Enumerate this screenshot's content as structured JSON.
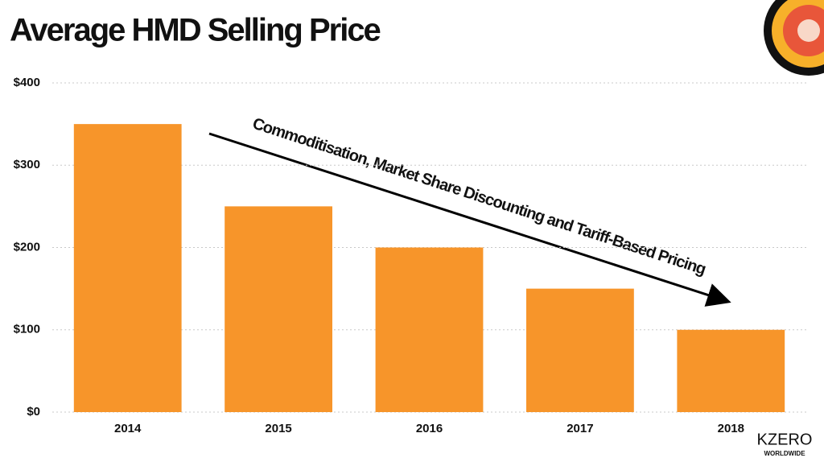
{
  "chart_data": {
    "type": "bar",
    "title": "Average HMD Selling Price",
    "categories": [
      "2014",
      "2015",
      "2016",
      "2017",
      "2018"
    ],
    "values": [
      350,
      250,
      200,
      150,
      100
    ],
    "color": "#f7952a",
    "ylim": [
      0,
      400
    ],
    "yticks": [
      {
        "value": 0,
        "label": "$0"
      },
      {
        "value": 100,
        "label": "$100"
      },
      {
        "value": 200,
        "label": "$200"
      },
      {
        "value": 300,
        "label": "$300"
      },
      {
        "value": 400,
        "label": "$400"
      }
    ],
    "grid": true,
    "annotation": "Commoditisation, Market Share Discounting and Tariff-Based Pricing"
  },
  "logo": {
    "name": "KZERO",
    "tagline": "WORLDWIDE"
  }
}
